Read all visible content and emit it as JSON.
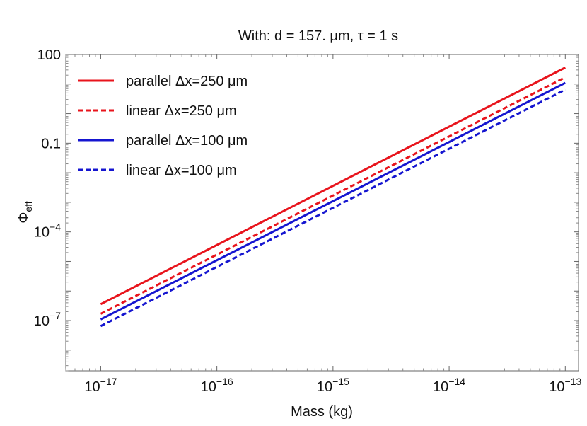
{
  "chart_data": {
    "type": "line",
    "title": "With: d = 157. μm, τ = 1 s",
    "xlabel": "Mass (kg)",
    "ylabel_main": "Φ",
    "ylabel_sub": "eff",
    "xscale": "log",
    "yscale": "log",
    "xlim": [
      5e-18,
      1.3e-13
    ],
    "ylim": [
      2e-09,
      100
    ],
    "grid": false,
    "legend_position": "top-left",
    "x_ticks": [
      {
        "mant": "10",
        "exp": "−17",
        "value": 1e-17
      },
      {
        "mant": "10",
        "exp": "−16",
        "value": 1e-16
      },
      {
        "mant": "10",
        "exp": "−15",
        "value": 1e-15
      },
      {
        "mant": "10",
        "exp": "−14",
        "value": 1e-14
      },
      {
        "mant": "10",
        "exp": "−13",
        "value": 1e-13
      }
    ],
    "y_ticks": [
      {
        "mant": "10",
        "exp": "−7",
        "value": 1e-07
      },
      {
        "mant": "10",
        "exp": "−4",
        "value": 0.0001
      },
      {
        "mant": "0.1",
        "exp": "",
        "value": 0.1
      },
      {
        "mant": "100",
        "exp": "",
        "value": 100
      }
    ],
    "series": [
      {
        "name": "parallel Δx=250 μm",
        "color": "#e8141c",
        "dash": "solid",
        "x": [
          1e-17,
          1e-13
        ],
        "y": [
          3.6e-07,
          36
        ]
      },
      {
        "name": "linear Δx=250 μm",
        "color": "#e8141c",
        "dash": "dashed",
        "x": [
          1e-17,
          1e-13
        ],
        "y": [
          1.7e-07,
          17
        ]
      },
      {
        "name": "parallel Δx=100 μm",
        "color": "#1515d0",
        "dash": "solid",
        "x": [
          1e-17,
          1e-13
        ],
        "y": [
          1.1e-07,
          11
        ]
      },
      {
        "name": "linear Δx=100 μm",
        "color": "#1515d0",
        "dash": "dashed",
        "x": [
          1e-17,
          1e-13
        ],
        "y": [
          6.5e-08,
          6.5
        ]
      }
    ]
  }
}
